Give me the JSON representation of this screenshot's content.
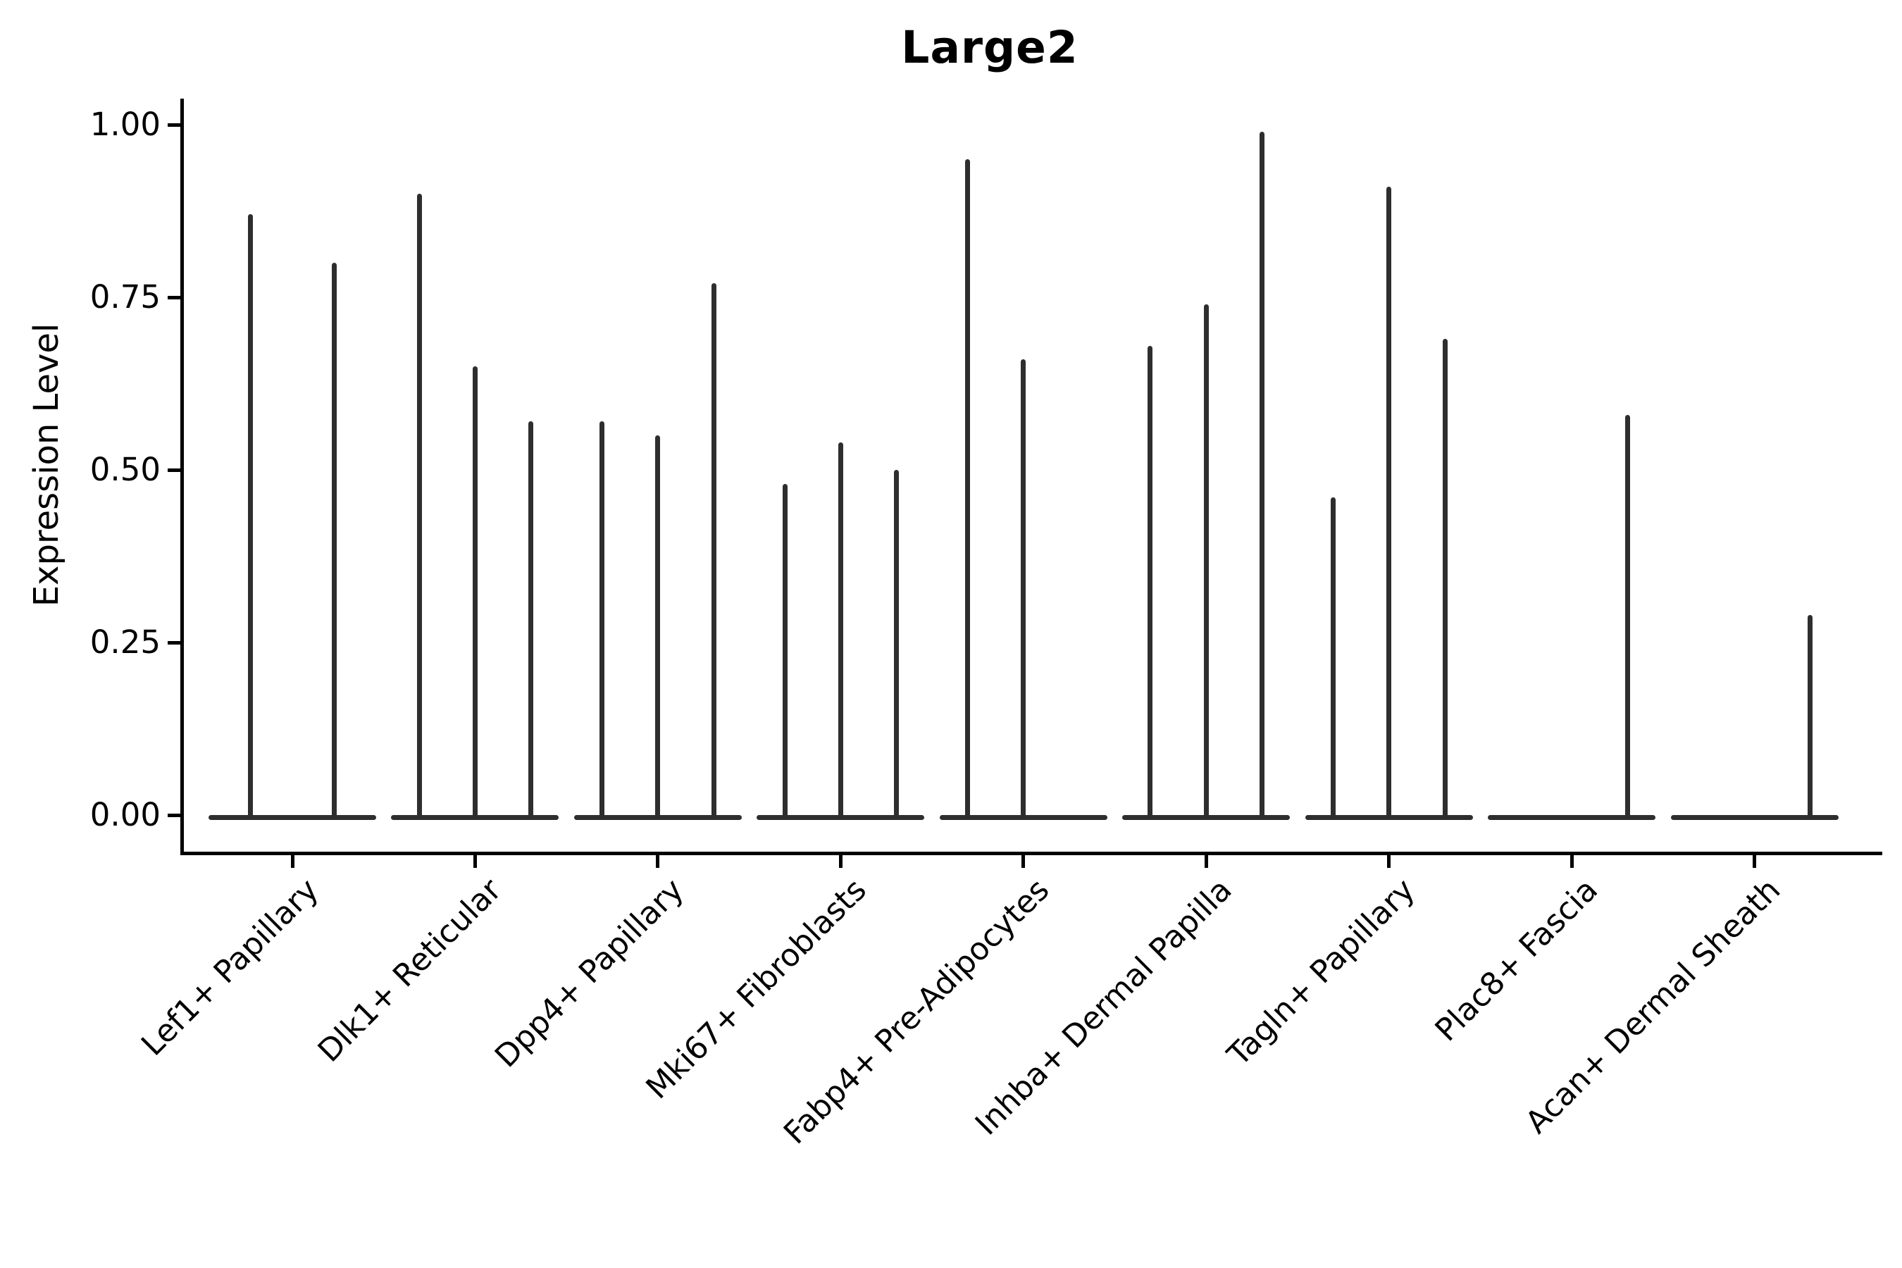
{
  "title": "Large2",
  "y_axis": {
    "label": "Expression Level",
    "ticks": [
      {
        "label": "1.00",
        "value": 1.0
      },
      {
        "label": "0.75",
        "value": 0.75
      },
      {
        "label": "0.50",
        "value": 0.5
      },
      {
        "label": "0.25",
        "value": 0.25
      },
      {
        "label": "0.00",
        "value": 0.0
      }
    ]
  },
  "chart_data": {
    "type": "violin",
    "title": "Large2",
    "xlabel": "",
    "ylabel": "Expression Level",
    "ylim": [
      0,
      1.04
    ],
    "grid": false,
    "legend": "none",
    "description": "Stacked-identity violin plot; each cell-type group contains 1-3 violins whose bodies are flat at expression 0 with a thin spike reaching that violin's maximum expression value. Zero entries mean a flat violin with no spike.",
    "categories": [
      "Lef1+ Papillary",
      "Dlk1+ Reticular",
      "Dpp4+ Papillary",
      "Mki67+ Fibroblasts",
      "Fabp4+ Pre-Adipocytes",
      "Inhba+ Dermal Papilla",
      "Tagln+ Papillary",
      "Plac8+ Fascia",
      "Acan+ Dermal Sheath"
    ],
    "violin_maxima": [
      [
        0.87,
        0.8
      ],
      [
        0.9,
        0.65,
        0.57
      ],
      [
        0.57,
        0.55,
        0.77
      ],
      [
        0.48,
        0.54,
        0.5
      ],
      [
        0.95,
        0.66,
        0
      ],
      [
        0.68,
        0.74,
        0.99
      ],
      [
        0.46,
        0.91,
        0.69
      ],
      [
        0,
        0,
        0.58
      ],
      [
        0,
        0,
        0.29
      ]
    ],
    "colors": {
      "ink": "#2e2e2e",
      "spine": "#000000",
      "background": "#ffffff"
    }
  }
}
